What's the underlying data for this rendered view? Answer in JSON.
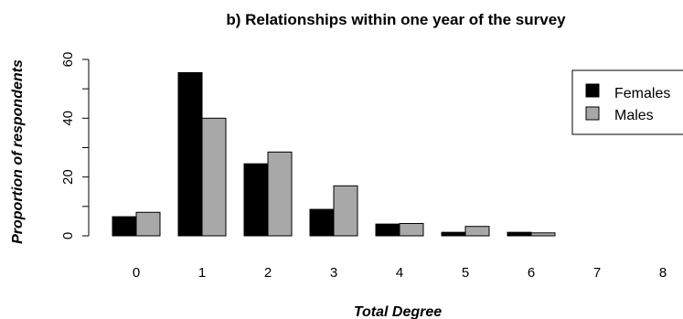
{
  "chart_data": {
    "type": "bar",
    "title": "b) Relationships within one year of the survey",
    "xlabel": "Total Degree",
    "ylabel": "Proportion of respondents",
    "categories": [
      "0",
      "1",
      "2",
      "3",
      "4",
      "5",
      "6",
      "7",
      "8"
    ],
    "series": [
      {
        "name": "Females",
        "color": "#000000",
        "values": [
          6.5,
          55.5,
          24.5,
          9,
          4,
          1.2,
          1.2,
          0,
          0
        ]
      },
      {
        "name": "Males",
        "color": "#a8a8a8",
        "values": [
          8,
          40,
          28.5,
          17,
          4.2,
          3.2,
          1,
          0,
          0
        ]
      }
    ],
    "ylim": [
      0,
      60
    ],
    "yticks": [
      0,
      20,
      40,
      60
    ],
    "grid": false,
    "legend_position": "top-right"
  }
}
